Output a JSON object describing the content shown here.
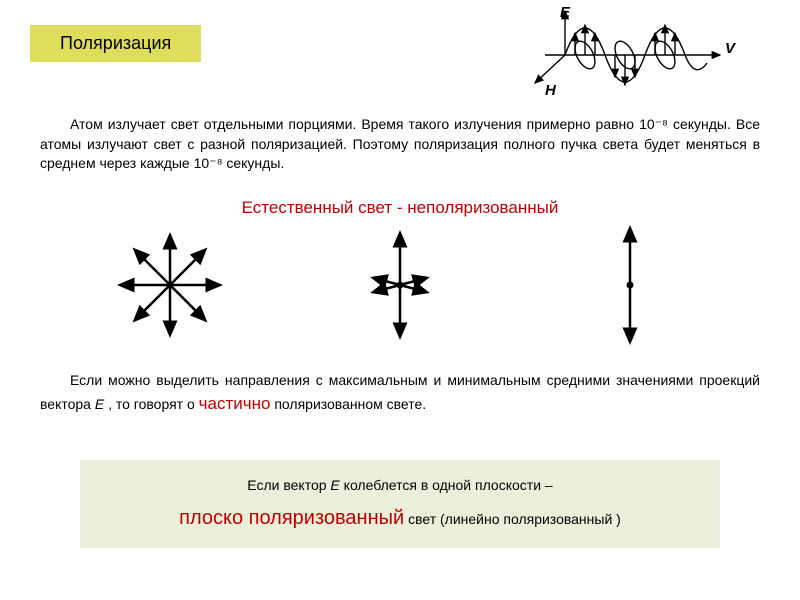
{
  "title": "Поляризация",
  "wave": {
    "label_E": "E",
    "label_H": "H",
    "label_V": "V",
    "stroke": "#000000",
    "stroke_width": 1.5
  },
  "paragraph1": {
    "text": "Атом излучает свет отдельными порциями. Время такого излучения примерно равно 10⁻⁸ секунды. Все атомы излучают свет с разной поляризацией. Поэтому поляризация полного пучка света будет меняться в среднем через каждые 10⁻⁸ секунды.",
    "fontsize": 14
  },
  "natural_light_caption": "Естественный свет - неполяризованный",
  "arrow_diagrams": {
    "stroke": "#000000",
    "stroke_width": 2.5,
    "dot_radius": 3.5,
    "d1_angles": [
      0,
      45,
      90,
      135,
      180,
      225,
      270,
      315
    ],
    "d2_angles": [
      15,
      90,
      165,
      195,
      270,
      345
    ],
    "d3_angles": [
      90,
      270
    ],
    "arm_length": 48
  },
  "paragraph2": {
    "pre": "Если можно выделить направления с максимальным и минимальным средними значениями проекций вектора ",
    "vector_letter": "E",
    "mid": " , то говорят о ",
    "partial_word": "частично",
    "post": " поляризованном свете."
  },
  "bottom_box": {
    "line1_pre": "Если вектор ",
    "line1_vector": "E",
    "line1_post": " колеблется в одной плоскости –",
    "line2_highlight": "плоско поляризованный",
    "line2_rest": " свет (линейно поляризованный )",
    "background": "#eaf0da"
  },
  "colors": {
    "title_bg": "#dede5c",
    "accent_red": "#c00000",
    "body_text": "#000000"
  }
}
